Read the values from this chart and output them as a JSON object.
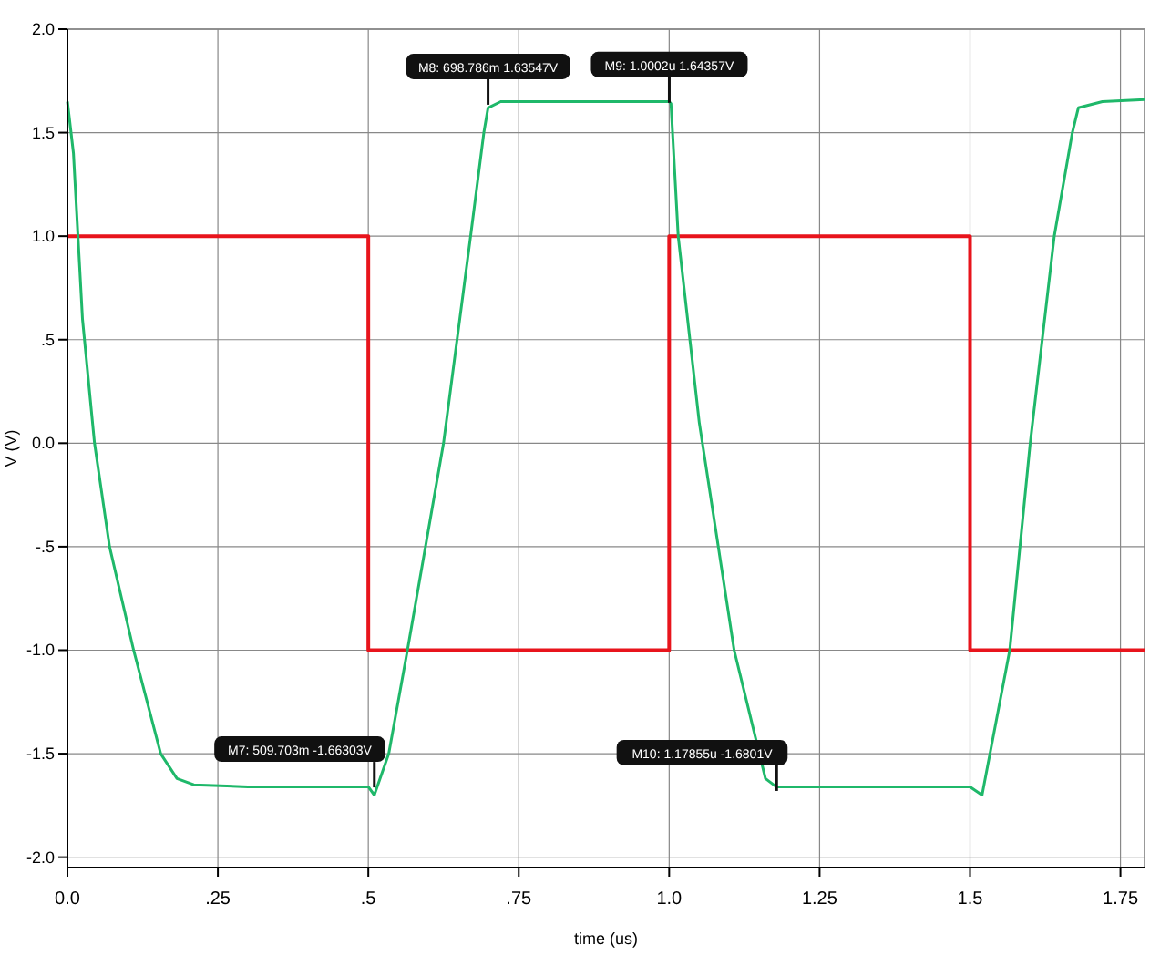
{
  "chart_data": {
    "type": "line",
    "xlabel": "time (us)",
    "ylabel": "V (V)",
    "xlim": [
      0,
      1.79
    ],
    "ylim": [
      -2.05,
      2.0
    ],
    "xticks": [
      {
        "value": 0,
        "label": "0.0"
      },
      {
        "value": 0.25,
        "label": ".25"
      },
      {
        "value": 0.5,
        "label": ".5"
      },
      {
        "value": 0.75,
        "label": ".75"
      },
      {
        "value": 1.0,
        "label": "1.0"
      },
      1.25,
      1.5,
      1.75
    ],
    "yticks": [
      {
        "value": -2.0,
        "label": "-2.0"
      },
      -1.5,
      {
        "value": -1.0,
        "label": "-1.0"
      },
      {
        "value": -0.5,
        "label": "-.5"
      },
      {
        "value": 0,
        "label": "0.0"
      },
      {
        "value": 0.5,
        "label": ".5"
      },
      {
        "value": 1.0,
        "label": "1.0"
      },
      1.5,
      {
        "value": 2.0,
        "label": "2.0"
      }
    ],
    "grid": true,
    "marker": "none",
    "line_style": "solid",
    "series": [
      {
        "color": "#e8141c",
        "x": [
          0,
          0.5,
          0.5,
          1.0,
          1.0,
          1.5,
          1.5,
          1.79
        ],
        "values": [
          1.0,
          1.0,
          -1.0,
          -1.0,
          1.0,
          1.0,
          -1.0,
          -1.0
        ]
      },
      {
        "color": "#1fb86a",
        "x": [
          0,
          0.01,
          0.025,
          0.045,
          0.07,
          0.11,
          0.155,
          0.182,
          0.21,
          0.3,
          0.4,
          0.5,
          0.51,
          0.534,
          0.565,
          0.625,
          0.67,
          0.692,
          0.699,
          0.72,
          0.85,
          1.0,
          1.003,
          1.015,
          1.05,
          1.108,
          1.16,
          1.178,
          1.2,
          1.3,
          1.4,
          1.5,
          1.52,
          1.566,
          1.6,
          1.64,
          1.67,
          1.68,
          1.72,
          1.79
        ],
        "values": [
          1.65,
          1.4,
          0.6,
          0,
          -0.5,
          -1.0,
          -1.5,
          -1.62,
          -1.65,
          -1.66,
          -1.66,
          -1.66,
          -1.7,
          -1.5,
          -1.0,
          0,
          1.0,
          1.5,
          1.62,
          1.65,
          1.65,
          1.65,
          1.64,
          1.0,
          0.1,
          -1.0,
          -1.62,
          -1.66,
          -1.66,
          -1.66,
          -1.66,
          -1.66,
          -1.7,
          -1.0,
          0,
          1.0,
          1.5,
          1.62,
          1.65,
          1.66
        ]
      }
    ],
    "annotations": [
      {
        "text": "M7: 509.703m -1.66303V",
        "x": 0.51,
        "y": -1.663
      },
      {
        "text": "M8: 698.786m 1.63547V",
        "x": 0.699,
        "y": 1.635
      },
      {
        "text": "M9: 1.0002u 1.64357V",
        "x": 1.0002,
        "y": 1.644
      },
      {
        "text": "M10: 1.17855u -1.6801V",
        "x": 1.1786,
        "y": -1.68
      }
    ]
  }
}
